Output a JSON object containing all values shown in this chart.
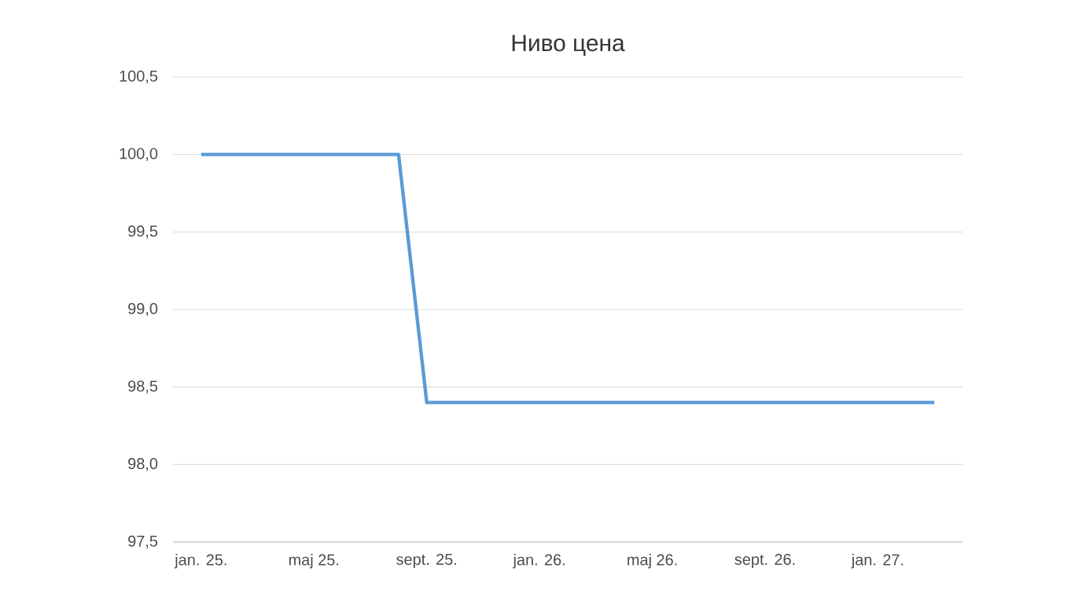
{
  "chart_data": {
    "type": "line",
    "title": "Ниво цена",
    "x": [
      "2025-01",
      "2025-02",
      "2025-03",
      "2025-04",
      "2025-05",
      "2025-06",
      "2025-07",
      "2025-08",
      "2025-09",
      "2025-10",
      "2025-11",
      "2025-12",
      "2026-01",
      "2026-02",
      "2026-03",
      "2026-04",
      "2026-05",
      "2026-06",
      "2026-07",
      "2026-08",
      "2026-09",
      "2026-10",
      "2026-11",
      "2026-12",
      "2027-01",
      "2027-02",
      "2027-03"
    ],
    "series": [
      {
        "color": "#5b9bd5",
        "values": [
          100,
          100,
          100,
          100,
          100,
          100,
          100,
          100,
          98.4,
          98.4,
          98.4,
          98.4,
          98.4,
          98.4,
          98.4,
          98.4,
          98.4,
          98.4,
          98.4,
          98.4,
          98.4,
          98.4,
          98.4,
          98.4,
          98.4,
          98.4,
          98.4
        ]
      }
    ],
    "xlim": [
      "2024-12",
      "2027-04"
    ],
    "xticks": [
      {
        "value": "2025-01",
        "label": "jan. 25."
      },
      {
        "value": "2025-05",
        "label": "maj 25."
      },
      {
        "value": "2025-09",
        "label": "sept. 25."
      },
      {
        "value": "2026-01",
        "label": "jan. 26."
      },
      {
        "value": "2026-05",
        "label": "maj 26."
      },
      {
        "value": "2026-09",
        "label": "sept. 26."
      },
      {
        "value": "2027-01",
        "label": "jan. 27."
      }
    ],
    "ylim": [
      97.5,
      100.5
    ],
    "yticks": [
      {
        "value": 97.5,
        "label": "97,5"
      },
      {
        "value": 98.0,
        "label": "98,0"
      },
      {
        "value": 98.5,
        "label": "98,5"
      },
      {
        "value": 99.0,
        "label": "99,0"
      },
      {
        "value": 99.5,
        "label": "99,5"
      },
      {
        "value": 100.0,
        "label": "100,0"
      },
      {
        "value": 100.5,
        "label": "100,5"
      }
    ],
    "grid": "y",
    "marker": "none",
    "line_style": "solid"
  }
}
